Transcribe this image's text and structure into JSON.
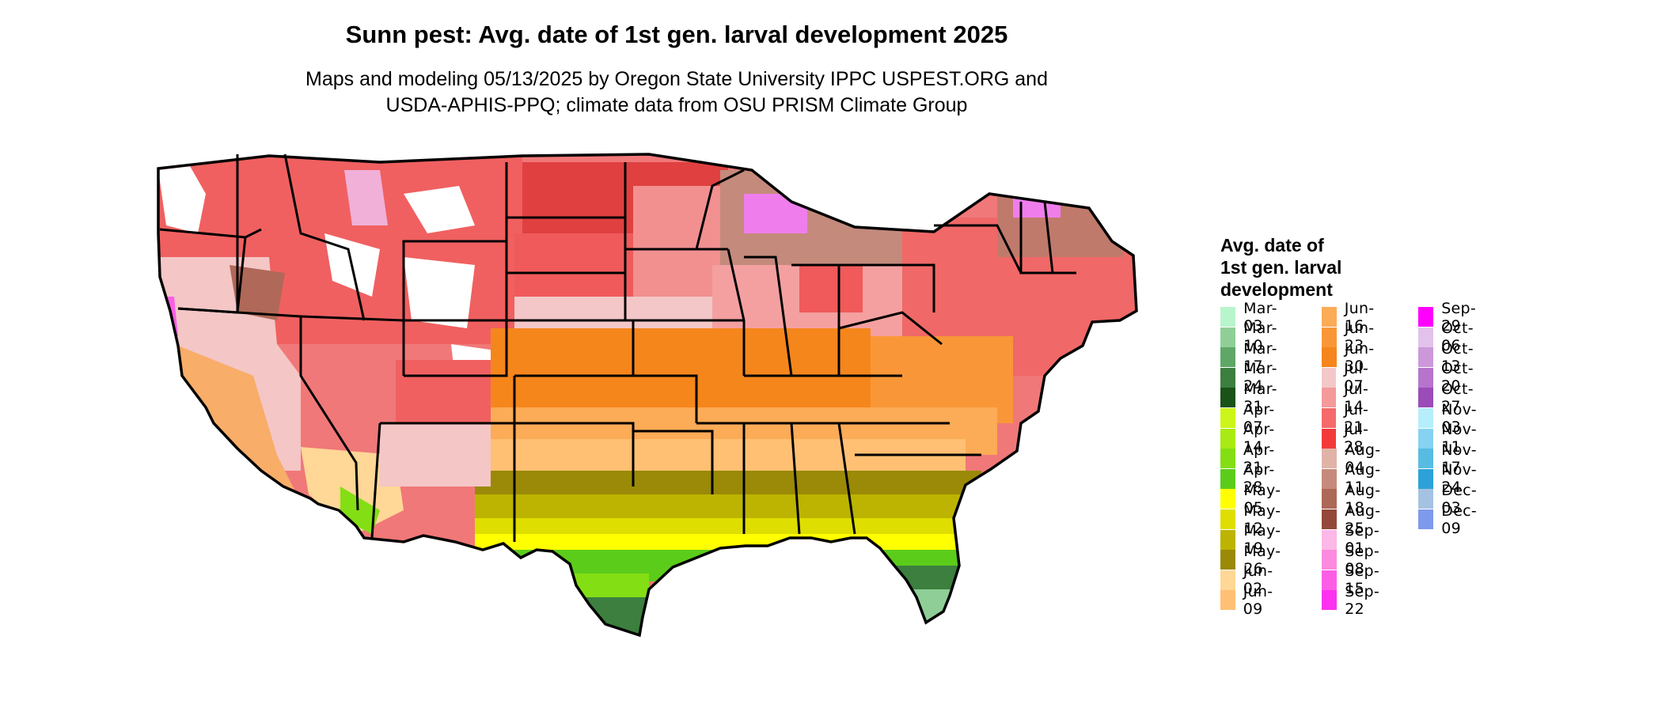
{
  "title": "Sunn pest: Avg. date of 1st gen. larval development 2025",
  "subtitle": "Maps and modeling 05/13/2025 by Oregon State University IPPC USPEST.ORG and\nUSDA-APHIS-PPQ; climate data from OSU PRISM Climate Group",
  "legend": {
    "title": "Avg. date of\n1st gen. larval\ndevelopment",
    "columns": [
      [
        {
          "label": "Mar-03",
          "color": "#b8f5cc"
        },
        {
          "label": "Mar-10",
          "color": "#8fcf97"
        },
        {
          "label": "Mar-17",
          "color": "#5fa766"
        },
        {
          "label": "Mar-24",
          "color": "#3c7f3f"
        },
        {
          "label": "Mar-31",
          "color": "#1a5218"
        },
        {
          "label": "Apr-07",
          "color": "#ccf51a"
        },
        {
          "label": "Apr-14",
          "color": "#a8ea12"
        },
        {
          "label": "Apr-21",
          "color": "#84de14"
        },
        {
          "label": "Apr-28",
          "color": "#5ccc1a"
        },
        {
          "label": "May-05",
          "color": "#ffff00"
        },
        {
          "label": "May-12",
          "color": "#dede00"
        },
        {
          "label": "May-19",
          "color": "#bcb400"
        },
        {
          "label": "May-26",
          "color": "#9a8a08"
        },
        {
          "label": "Jun-02",
          "color": "#ffd796"
        },
        {
          "label": "Jun-09",
          "color": "#ffc074"
        }
      ],
      [
        {
          "label": "Jun-16",
          "color": "#fcab57"
        },
        {
          "label": "Jun-23",
          "color": "#f99738"
        },
        {
          "label": "Jun-30",
          "color": "#f5851c"
        },
        {
          "label": "Jul-07",
          "color": "#f2c8c8"
        },
        {
          "label": "Jul-14",
          "color": "#f49a9a"
        },
        {
          "label": "Jul-21",
          "color": "#f56a6a"
        },
        {
          "label": "Jul-28",
          "color": "#f23a3a"
        },
        {
          "label": "Aug-04",
          "color": "#e1b2a8"
        },
        {
          "label": "Aug-11",
          "color": "#c68a7c"
        },
        {
          "label": "Aug-18",
          "color": "#ad6858"
        },
        {
          "label": "Aug-25",
          "color": "#93483a"
        },
        {
          "label": "Sep-01",
          "color": "#fcb8e6"
        },
        {
          "label": "Sep-08",
          "color": "#fc8ade"
        },
        {
          "label": "Sep-15",
          "color": "#fc5ee6"
        },
        {
          "label": "Sep-22",
          "color": "#fc32f0"
        }
      ],
      [
        {
          "label": "Sep-29",
          "color": "#ff00ff"
        },
        {
          "label": "Oct-06",
          "color": "#e2c2ea"
        },
        {
          "label": "Oct-13",
          "color": "#cc98da"
        },
        {
          "label": "Oct-20",
          "color": "#b674cc"
        },
        {
          "label": "Oct-27",
          "color": "#9a4cb8"
        },
        {
          "label": "Nov-03",
          "color": "#b6eefc"
        },
        {
          "label": "Nov-11",
          "color": "#86d2f0"
        },
        {
          "label": "Nov-17",
          "color": "#58bce2"
        },
        {
          "label": "Nov-24",
          "color": "#2ca2d8"
        },
        {
          "label": "Dec-03",
          "color": "#a6c2e2"
        },
        {
          "label": "Dec-09",
          "color": "#7e9aea"
        }
      ]
    ]
  }
}
